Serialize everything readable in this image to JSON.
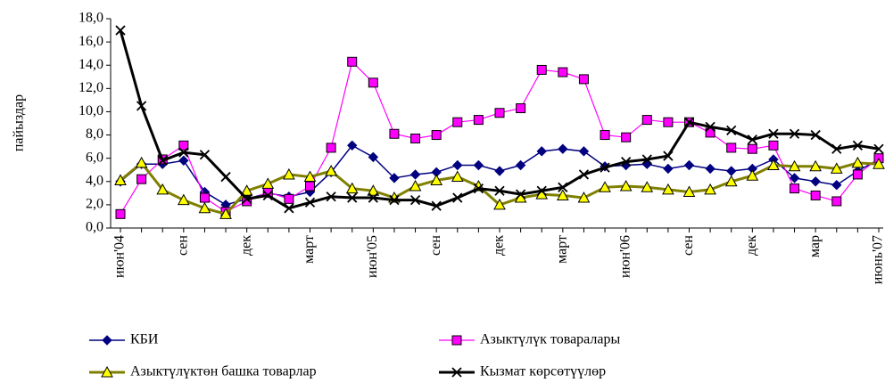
{
  "chart_data": {
    "type": "line",
    "y_label": "пайыздар",
    "categories": [
      "июн'04",
      null,
      null,
      "сен",
      null,
      null,
      "дек",
      null,
      null,
      "март",
      null,
      null,
      "июн'05",
      null,
      null,
      "сен",
      null,
      null,
      "дек",
      null,
      null,
      "март",
      null,
      null,
      "июн'06",
      null,
      null,
      "сен",
      null,
      null,
      "дек",
      null,
      null,
      "мар",
      null,
      null,
      "июнь'07"
    ],
    "ylim": [
      0,
      18
    ],
    "yticks": [
      {
        "value": 0,
        "label": "0,0"
      },
      {
        "value": 2,
        "label": "2,0"
      },
      {
        "value": 4,
        "label": "4,0"
      },
      {
        "value": 6,
        "label": "6,0"
      },
      {
        "value": 8,
        "label": "8,0"
      },
      {
        "value": 10,
        "label": "10,0"
      },
      {
        "value": 12,
        "label": "12,0"
      },
      {
        "value": 14,
        "label": "14,0"
      },
      {
        "value": 16,
        "label": "16,0"
      },
      {
        "value": 18,
        "label": "18,0"
      }
    ],
    "series": [
      {
        "name": "КБИ",
        "color": "#000080",
        "marker": "diamond",
        "marker_fill": "#000080",
        "line_width": 1.5,
        "values": [
          4.0,
          5.5,
          5.5,
          5.8,
          3.1,
          2.0,
          2.5,
          3.0,
          2.7,
          3.1,
          4.8,
          7.1,
          6.1,
          4.3,
          4.6,
          4.8,
          5.4,
          5.4,
          4.9,
          5.4,
          6.6,
          6.8,
          6.6,
          5.3,
          5.4,
          5.5,
          5.1,
          5.4,
          5.1,
          4.9,
          5.1,
          5.9,
          4.3,
          4.0,
          3.7,
          4.9,
          5.9
        ]
      },
      {
        "name": "Азыктүлүк товаралары",
        "color": "#ff00ff",
        "marker": "square",
        "marker_fill": "#ff00ff",
        "line_width": 1.2,
        "values": [
          1.2,
          4.2,
          5.9,
          7.1,
          2.6,
          1.4,
          2.3,
          3.1,
          2.5,
          3.6,
          6.9,
          14.3,
          12.5,
          8.1,
          7.7,
          8.0,
          9.1,
          9.3,
          9.9,
          10.3,
          13.6,
          13.4,
          12.8,
          8.0,
          7.8,
          9.3,
          9.1,
          9.1,
          8.2,
          6.9,
          6.8,
          7.1,
          3.4,
          2.8,
          2.3,
          4.6,
          6.0
        ]
      },
      {
        "name": "Азыктүлүктөн башка товарлар",
        "color": "#808000",
        "marker": "triangle",
        "marker_fill": "#ffff00",
        "line_width": 3,
        "values": [
          4.1,
          5.6,
          3.3,
          2.4,
          1.7,
          1.2,
          3.2,
          3.8,
          4.6,
          4.4,
          4.9,
          3.4,
          3.2,
          2.6,
          3.6,
          4.1,
          4.4,
          3.6,
          2.0,
          2.6,
          2.9,
          2.8,
          2.6,
          3.5,
          3.6,
          3.5,
          3.3,
          3.1,
          3.3,
          4.0,
          4.5,
          5.4,
          5.3,
          5.3,
          5.1,
          5.6,
          5.5
        ]
      },
      {
        "name": "Кызмат көрсөтүүлөр",
        "color": "#000000",
        "marker": "cross",
        "marker_fill": "none",
        "line_width": 3,
        "values": [
          17.0,
          10.5,
          5.8,
          6.5,
          6.3,
          4.4,
          2.5,
          2.8,
          1.7,
          2.2,
          2.7,
          2.6,
          2.6,
          2.4,
          2.4,
          1.9,
          2.6,
          3.4,
          3.2,
          2.9,
          3.2,
          3.5,
          4.6,
          5.2,
          5.7,
          5.9,
          6.2,
          9.1,
          8.7,
          8.4,
          7.6,
          8.1,
          8.1,
          8.0,
          6.8,
          7.1,
          6.8
        ]
      }
    ]
  }
}
